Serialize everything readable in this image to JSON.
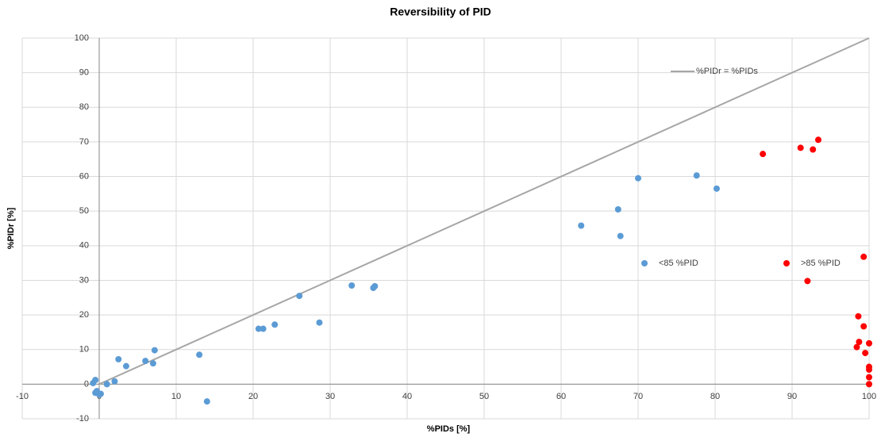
{
  "chart_data": {
    "type": "scatter",
    "title": "Reversibility of PID",
    "xlabel": "%PIDs [%]",
    "ylabel": "%PIDr [%]",
    "xlim": [
      -10,
      100
    ],
    "ylim": [
      -10,
      100
    ],
    "xticks": [
      -10,
      0,
      10,
      20,
      30,
      40,
      50,
      60,
      70,
      80,
      90,
      100
    ],
    "yticks": [
      -10,
      0,
      10,
      20,
      30,
      40,
      50,
      60,
      70,
      80,
      90,
      100
    ],
    "grid": true,
    "series": [
      {
        "name": "%PIDr = %PIDs",
        "type": "line",
        "color": "#a6a6a6",
        "x": [
          0,
          100
        ],
        "values": [
          0,
          100
        ]
      },
      {
        "name": "<85 %PID",
        "type": "scatter",
        "color": "#5b9bd5",
        "x": [
          -0.5,
          -0.8,
          -0.3,
          -0.5,
          0,
          0.2,
          1,
          2,
          2.5,
          3.5,
          6,
          7,
          7.2,
          13,
          14,
          20.7,
          21.3,
          22.8,
          26,
          28.6,
          32.8,
          35.6,
          35.8,
          62.6,
          67.4,
          67.7,
          70,
          77.6,
          80.2
        ],
        "values": [
          1.2,
          0.3,
          -2,
          -2.5,
          -3,
          -2.8,
          0,
          0.8,
          7.2,
          5.2,
          6.7,
          6,
          9.8,
          8.5,
          -5,
          16,
          16,
          17.2,
          25.5,
          17.8,
          28.5,
          27.8,
          28.3,
          45.8,
          50.5,
          42.8,
          59.5,
          60.3,
          56.5
        ]
      },
      {
        "name": ">85 %PID",
        "type": "scatter",
        "color": "#ff0000",
        "x": [
          86.2,
          91.1,
          92.7,
          93.4,
          92,
          99.3,
          98.6,
          99.3,
          98.7,
          98.4,
          99.5,
          100,
          100,
          100,
          100,
          100
        ],
        "values": [
          66.5,
          68.3,
          67.8,
          70.6,
          29.8,
          36.8,
          19.6,
          16.7,
          12.2,
          10.7,
          9,
          11.8,
          5,
          4.2,
          2,
          0
        ]
      }
    ]
  }
}
